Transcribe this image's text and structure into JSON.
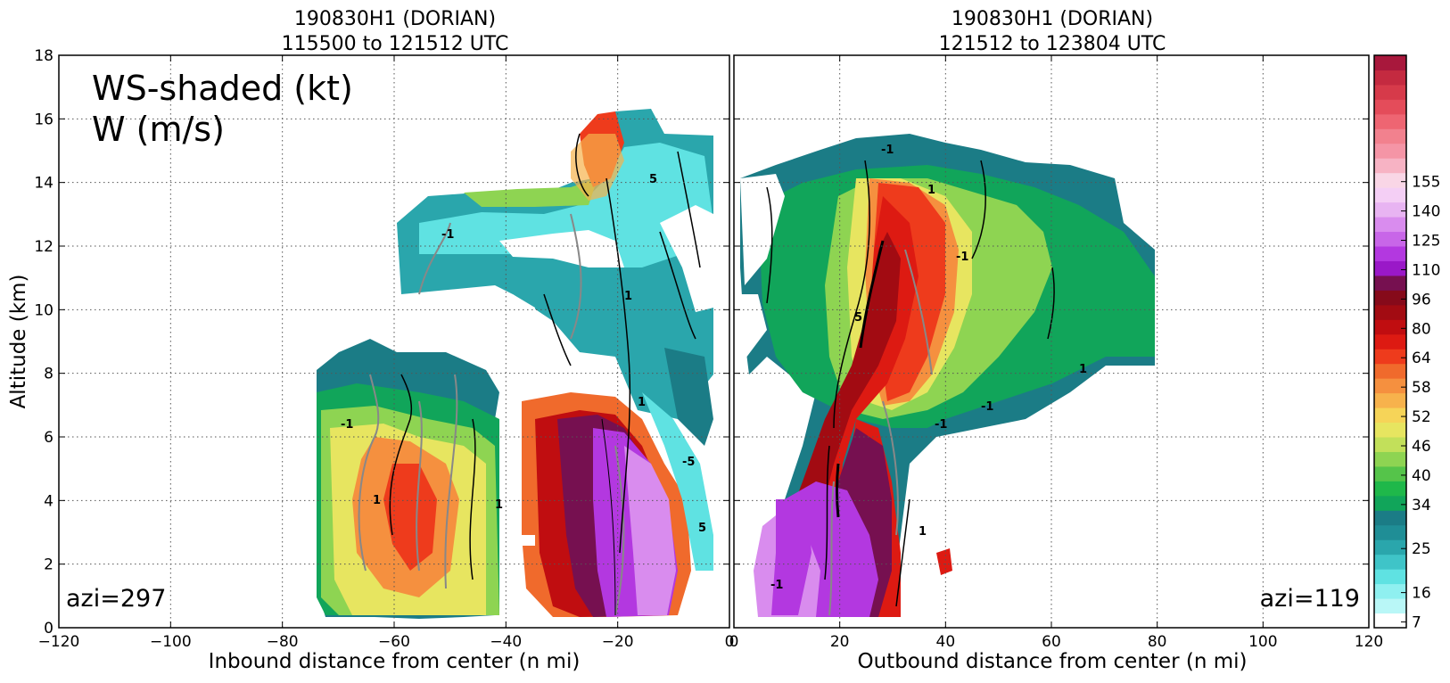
{
  "chart_data": [
    {
      "type": "heatmap",
      "title": [
        "190830H1 (DORIAN)",
        "115500 to 121512 UTC"
      ],
      "xlabel": "Inbound distance from center (n mi)",
      "ylabel": "Altitude (km)",
      "xlim": [
        -120,
        0
      ],
      "ylim": [
        0,
        18
      ],
      "xticks": [
        "−120",
        "−100",
        "−80",
        "−60",
        "−40",
        "−20",
        "0"
      ],
      "yticks": [
        "0",
        "2",
        "4",
        "6",
        "8",
        "10",
        "12",
        "14",
        "16",
        "18"
      ],
      "grid": true,
      "annotation_main": [
        "WS-shaded (kt)",
        "W (m/s)"
      ],
      "annotation_corner": "azi=297",
      "contour_labels": [
        "1",
        "-1",
        "5",
        "-5"
      ]
    },
    {
      "type": "heatmap",
      "title": [
        "190830H1 (DORIAN)",
        "121512 to 123804 UTC"
      ],
      "xlabel": "Outbound distance from center (n mi)",
      "xlim": [
        0,
        120
      ],
      "ylim": [
        0,
        18
      ],
      "xticks": [
        "0",
        "20",
        "40",
        "60",
        "80",
        "100",
        "120"
      ],
      "grid": true,
      "annotation_corner": "azi=119",
      "contour_labels": [
        "1",
        "-1",
        "5"
      ]
    }
  ],
  "colorbar": {
    "ticks": [
      "7",
      "16",
      "25",
      "34",
      "40",
      "46",
      "52",
      "58",
      "64",
      "80",
      "96",
      "110",
      "125",
      "140",
      "155"
    ],
    "colors": [
      "#ffffff",
      "#b9f7f7",
      "#8ff0f0",
      "#5fe2e2",
      "#3fc4c8",
      "#2aa6ac",
      "#1f8e96",
      "#1b7c86",
      "#11a55a",
      "#1fb84a",
      "#55c44a",
      "#8ed452",
      "#c2e05a",
      "#e7e560",
      "#f6d458",
      "#f7b24c",
      "#f5903f",
      "#f06a2c",
      "#ee3b1c",
      "#dd1a12",
      "#c00d10",
      "#a20b12",
      "#860a1a",
      "#761050",
      "#9a18c8",
      "#b338e0",
      "#c866e8",
      "#d98cee",
      "#e8b4f2",
      "#f4cff5",
      "#f9d6e6",
      "#f7b3c4",
      "#f595a6",
      "#f2818e",
      "#ee6572",
      "#e44c5a",
      "#d63a4a",
      "#c42a40",
      "#a8183c"
    ]
  }
}
